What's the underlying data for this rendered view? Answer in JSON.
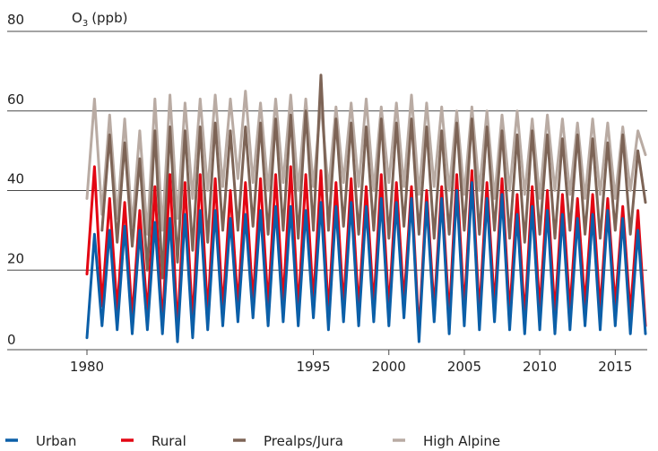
{
  "chart_data": {
    "type": "line",
    "ylabel_main": "O",
    "ylabel_sub": "3",
    "ylabel_unit": "(ppb)",
    "ylim": [
      0,
      80
    ],
    "xlim": [
      1980,
      2017
    ],
    "yticks": [
      "0",
      "20",
      "40",
      "60",
      "80"
    ],
    "xticks": [
      "1980",
      "1995",
      "2000",
      "2005",
      "2010",
      "2015"
    ],
    "grid": true,
    "legend": "bottom",
    "series": [
      {
        "name": "Urban",
        "color": "#0b5fa8",
        "x": [
          1980.0,
          1980.5,
          1981.0,
          1981.5,
          1982.0,
          1982.5,
          1983.0,
          1983.5,
          1984.0,
          1984.5,
          1985.0,
          1985.5,
          1986.0,
          1986.5,
          1987.0,
          1987.5,
          1988.0,
          1988.5,
          1989.0,
          1989.5,
          1990.0,
          1990.5,
          1991.0,
          1991.5,
          1992.0,
          1992.5,
          1993.0,
          1993.5,
          1994.0,
          1994.5,
          1995.0,
          1995.5,
          1996.0,
          1996.5,
          1997.0,
          1997.5,
          1998.0,
          1998.5,
          1999.0,
          1999.5,
          2000.0,
          2000.5,
          2001.0,
          2001.5,
          2002.0,
          2002.5,
          2003.0,
          2003.5,
          2004.0,
          2004.5,
          2005.0,
          2005.5,
          2006.0,
          2006.5,
          2007.0,
          2007.5,
          2008.0,
          2008.5,
          2009.0,
          2009.5,
          2010.0,
          2010.5,
          2011.0,
          2011.5,
          2012.0,
          2012.5,
          2013.0,
          2013.5,
          2014.0,
          2014.5,
          2015.0,
          2015.5,
          2016.0,
          2016.5,
          2017.0
        ],
        "values": [
          3,
          29,
          6,
          30,
          5,
          31,
          4,
          30,
          5,
          32,
          4,
          33,
          2,
          34,
          3,
          35,
          5,
          35,
          6,
          33,
          7,
          34,
          8,
          35,
          6,
          36,
          7,
          36,
          6,
          35,
          8,
          37,
          5,
          36,
          7,
          37,
          6,
          36,
          7,
          38,
          6,
          37,
          8,
          38,
          2,
          37,
          7,
          38,
          4,
          40,
          6,
          42,
          5,
          38,
          7,
          39,
          5,
          34,
          4,
          36,
          5,
          35,
          4,
          34,
          5,
          33,
          6,
          34,
          5,
          35,
          6,
          33,
          4,
          30,
          4
        ]
      },
      {
        "name": "Rural",
        "color": "#e30613",
        "x": [
          1980.0,
          1980.5,
          1981.0,
          1981.5,
          1982.0,
          1982.5,
          1983.0,
          1983.5,
          1984.0,
          1984.5,
          1985.0,
          1985.5,
          1986.0,
          1986.5,
          1987.0,
          1987.5,
          1988.0,
          1988.5,
          1989.0,
          1989.5,
          1990.0,
          1990.5,
          1991.0,
          1991.5,
          1992.0,
          1992.5,
          1993.0,
          1993.5,
          1994.0,
          1994.5,
          1995.0,
          1995.5,
          1996.0,
          1996.5,
          1997.0,
          1997.5,
          1998.0,
          1998.5,
          1999.0,
          1999.5,
          2000.0,
          2000.5,
          2001.0,
          2001.5,
          2002.0,
          2002.5,
          2003.0,
          2003.5,
          2004.0,
          2004.5,
          2005.0,
          2005.5,
          2006.0,
          2006.5,
          2007.0,
          2007.5,
          2008.0,
          2008.5,
          2009.0,
          2009.5,
          2010.0,
          2010.5,
          2011.0,
          2011.5,
          2012.0,
          2012.5,
          2013.0,
          2013.5,
          2014.0,
          2014.5,
          2015.0,
          2015.5,
          2016.0,
          2016.5,
          2017.0
        ],
        "values": [
          19,
          46,
          11,
          38,
          10,
          37,
          8,
          35,
          9,
          41,
          6,
          44,
          5,
          42,
          7,
          44,
          9,
          43,
          10,
          40,
          11,
          42,
          12,
          43,
          11,
          44,
          12,
          46,
          10,
          44,
          12,
          45,
          9,
          42,
          11,
          43,
          10,
          41,
          11,
          44,
          10,
          42,
          12,
          41,
          4,
          40,
          10,
          41,
          8,
          44,
          10,
          45,
          9,
          42,
          11,
          43,
          9,
          39,
          8,
          41,
          10,
          40,
          9,
          39,
          10,
          38,
          11,
          39,
          10,
          38,
          11,
          36,
          9,
          35,
          6
        ]
      },
      {
        "name": "Prealps/Jura",
        "color": "#7d6456",
        "x": [
          1981.0,
          1981.5,
          1982.0,
          1982.5,
          1983.0,
          1983.5,
          1984.0,
          1984.5,
          1985.0,
          1985.5,
          1986.0,
          1986.5,
          1987.0,
          1987.5,
          1988.0,
          1988.5,
          1989.0,
          1989.5,
          1990.0,
          1990.5,
          1991.0,
          1991.5,
          1992.0,
          1992.5,
          1993.0,
          1993.5,
          1994.0,
          1994.5,
          1995.0,
          1995.5,
          1996.0,
          1996.5,
          1997.0,
          1997.5,
          1998.0,
          1998.5,
          1999.0,
          1999.5,
          2000.0,
          2000.5,
          2001.0,
          2001.5,
          2002.0,
          2002.5,
          2003.0,
          2003.5,
          2004.0,
          2004.5,
          2005.0,
          2005.5,
          2006.0,
          2006.5,
          2007.0,
          2007.5,
          2008.0,
          2008.5,
          2009.0,
          2009.5,
          2010.0,
          2010.5,
          2011.0,
          2011.5,
          2012.0,
          2012.5,
          2013.0,
          2013.5,
          2014.0,
          2014.5,
          2015.0,
          2015.5,
          2016.0,
          2016.5,
          2017.0
        ],
        "values": [
          30,
          54,
          27,
          52,
          26,
          48,
          20,
          55,
          18,
          56,
          22,
          55,
          25,
          56,
          27,
          57,
          30,
          55,
          30,
          56,
          31,
          57,
          29,
          58,
          30,
          59,
          28,
          60,
          30,
          69,
          30,
          58,
          31,
          57,
          29,
          56,
          30,
          58,
          28,
          57,
          31,
          58,
          29,
          56,
          28,
          55,
          29,
          57,
          30,
          58,
          29,
          56,
          30,
          55,
          28,
          54,
          27,
          55,
          29,
          54,
          28,
          53,
          30,
          54,
          29,
          53,
          28,
          52,
          30,
          54,
          29,
          50,
          37
        ]
      },
      {
        "name": "High Alpine",
        "color": "#b9aba3",
        "x": [
          1980.0,
          1980.5,
          1981.0,
          1981.5,
          1982.0,
          1982.5,
          1983.0,
          1983.5,
          1984.0,
          1984.5,
          1985.0,
          1985.5,
          1986.0,
          1986.5,
          1987.0,
          1987.5,
          1988.0,
          1988.5,
          1989.0,
          1989.5,
          1990.0,
          1990.5,
          1991.0,
          1991.5,
          1992.0,
          1992.5,
          1993.0,
          1993.5,
          1994.0,
          1994.5,
          1995.0,
          1995.5,
          1996.0,
          1996.5,
          1997.0,
          1997.5,
          1998.0,
          1998.5,
          1999.0,
          1999.5,
          2000.0,
          2000.5,
          2001.0,
          2001.5,
          2002.0,
          2002.5,
          2003.0,
          2003.5,
          2004.0,
          2004.5,
          2005.0,
          2005.5,
          2006.0,
          2006.5,
          2007.0,
          2007.5,
          2008.0,
          2008.5,
          2009.0,
          2009.5,
          2010.0,
          2010.5,
          2011.0,
          2011.5,
          2012.0,
          2012.5,
          2013.0,
          2013.5,
          2014.0,
          2014.5,
          2015.0,
          2015.5,
          2016.0,
          2016.5,
          2017.0
        ],
        "values": [
          38,
          63,
          34,
          59,
          33,
          58,
          31,
          55,
          29,
          63,
          30,
          64,
          33,
          62,
          38,
          63,
          40,
          64,
          41,
          63,
          43,
          65,
          42,
          62,
          40,
          63,
          42,
          64,
          40,
          63,
          41,
          62,
          40,
          61,
          42,
          62,
          41,
          63,
          40,
          61,
          42,
          62,
          41,
          64,
          39,
          62,
          41,
          61,
          40,
          60,
          39,
          61,
          40,
          60,
          38,
          59,
          40,
          60,
          39,
          58,
          38,
          59,
          40,
          58,
          39,
          57,
          38,
          58,
          39,
          57,
          38,
          56,
          40,
          55,
          49
        ]
      }
    ]
  }
}
